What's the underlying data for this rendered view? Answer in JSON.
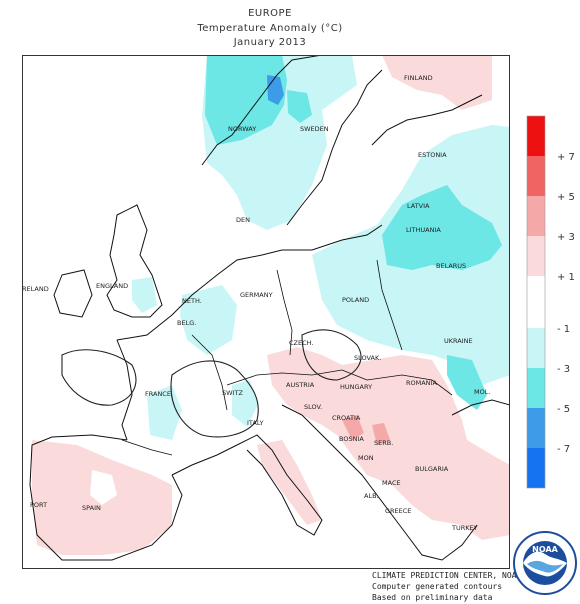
{
  "title": {
    "line1": "EUROPE",
    "line2": "Temperature Anomaly (°C)",
    "line3": "January 2013"
  },
  "colors": {
    "plus7": "#ee1111",
    "plus5": "#f06464",
    "plus3": "#f5a8a8",
    "plus1": "#fadada",
    "zero": "#ffffff",
    "minus1": "#c8f5f5",
    "minus3": "#6de6e6",
    "minus5": "#3d9be8",
    "minus7": "#1572f0",
    "land_neutral": "#ffffff",
    "outline": "#111111"
  },
  "legend": {
    "ticks": [
      "+ 7",
      "+ 5",
      "+ 3",
      "+ 1",
      "- 1",
      "- 3",
      "- 5",
      "- 7"
    ]
  },
  "regions": {
    "finland": "FINLAND",
    "norway": "NORWAY",
    "sweden": "SWEDEN",
    "estonia": "ESTONIA",
    "latvia": "LATVIA",
    "lithuania": "LITHUANIA",
    "belarus": "BELARUS",
    "den": "DEN",
    "ireland": "RELAND",
    "england": "ENGLAND",
    "neth": "NETH.",
    "germany": "GERMANY",
    "belg": "BELG.",
    "poland": "POLAND",
    "ukraine": "UKRAINE",
    "czech": "CZECH.",
    "slovak": "SLOVAK.",
    "france": "FRANCE",
    "switz": "SWITZ",
    "austria": "AUSTRIA",
    "hungary": "HUNGARY",
    "mol": "MOL.",
    "romania": "ROMANIA",
    "slov": "SLOV.",
    "croatia": "CROATIA",
    "italy": "ITALY",
    "bosnia": "BOSNIA",
    "serb": "SERB.",
    "mon": "MON",
    "bulgaria": "BULGARIA",
    "mace": "MACE",
    "alb": "ALB.",
    "greece": "GREECE",
    "turkey": "TURKEY",
    "port": "PORT",
    "spain": "SPAIN"
  },
  "credit": {
    "line1": "CLIMATE PREDICTION CENTER, NOAA",
    "line2": "Computer generated contours",
    "line3": "Based on preliminary data"
  },
  "logo": {
    "text": "NOAA",
    "ring_text": "NATIONAL OCEANIC AND ATMOSPHERIC ADMINISTRATION",
    "ring_text_bottom": "U.S. DEPARTMENT OF COMMERCE"
  }
}
